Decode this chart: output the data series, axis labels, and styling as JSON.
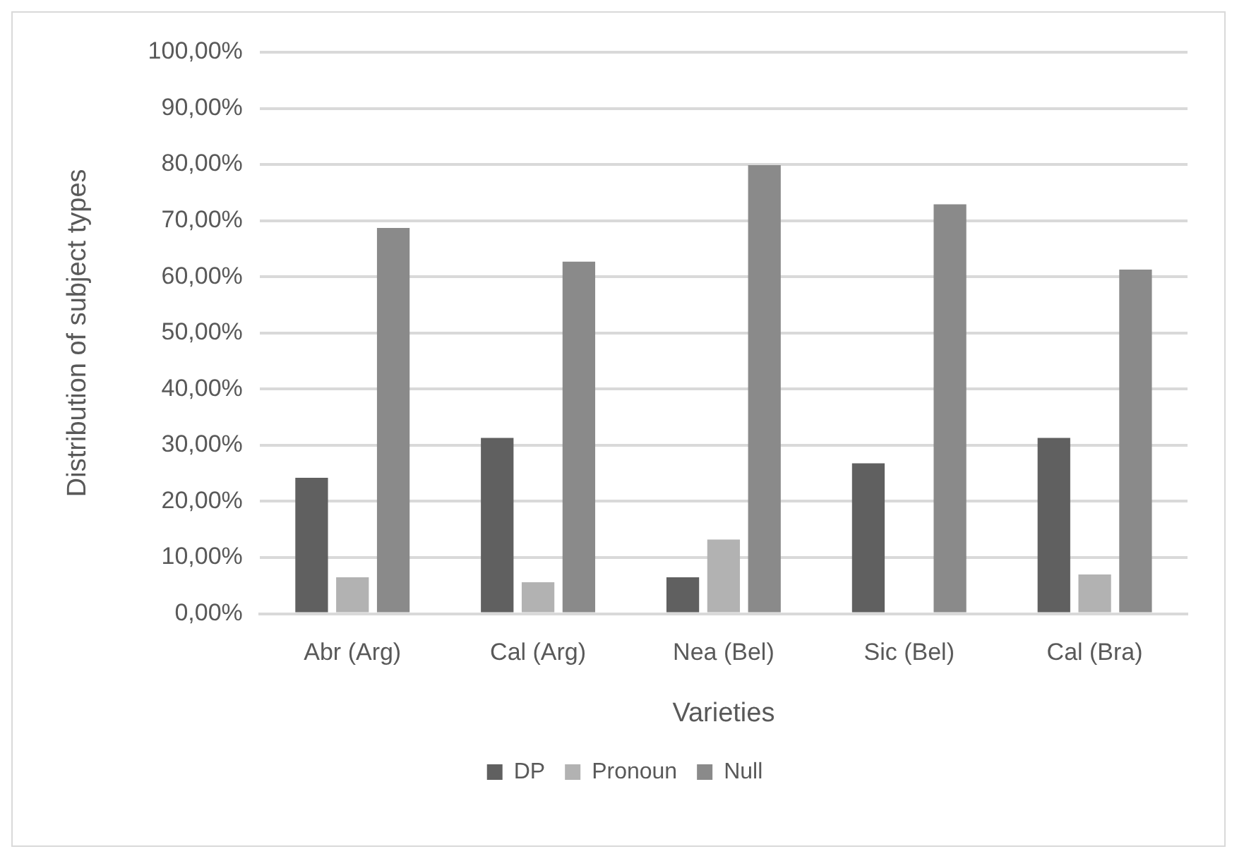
{
  "chart_data": {
    "type": "bar",
    "xlabel": "Varieties",
    "ylabel": "Distribution of subject types",
    "categories": [
      "Abr (Arg)",
      "Cal (Arg)",
      "Nea (Bel)",
      "Sic (Bel)",
      "Cal (Bra)"
    ],
    "series": [
      {
        "name": "DP",
        "color": "#606060",
        "values": [
          24.2,
          31.3,
          6.5,
          26.8,
          31.3
        ]
      },
      {
        "name": "Pronoun",
        "color": "#b2b2b2",
        "values": [
          6.5,
          5.6,
          13.2,
          0,
          7.0
        ]
      },
      {
        "name": "Null",
        "color": "#8a8a8a",
        "values": [
          68.7,
          62.7,
          79.9,
          72.9,
          61.3
        ]
      }
    ],
    "ylim": [
      0,
      100
    ],
    "yticks": [
      {
        "value": 0,
        "label": "0,00%"
      },
      {
        "value": 10,
        "label": "10,00%"
      },
      {
        "value": 20,
        "label": "20,00%"
      },
      {
        "value": 30,
        "label": "30,00%"
      },
      {
        "value": 40,
        "label": "40,00%"
      },
      {
        "value": 50,
        "label": "50,00%"
      },
      {
        "value": 60,
        "label": "60,00%"
      },
      {
        "value": 70,
        "label": "70,00%"
      },
      {
        "value": 80,
        "label": "80,00%"
      },
      {
        "value": 90,
        "label": "90,00%"
      },
      {
        "value": 100,
        "label": "100,00%"
      }
    ],
    "grid": "y",
    "legend": "bottom"
  }
}
